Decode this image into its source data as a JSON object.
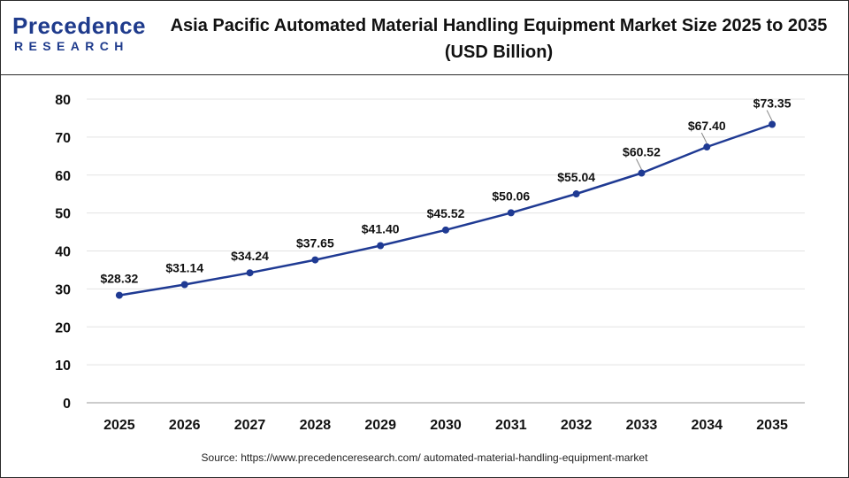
{
  "header": {
    "logo_main": "Precedence",
    "logo_sub": "RESEARCH",
    "title_line1": "Asia Pacific Automated Material Handling Equipment Market Size 2025 to 2035",
    "title_line2": "(USD Billion)"
  },
  "source": "Source: https://www.precedenceresearch.com/ automated-material-handling-equipment-market",
  "colors": {
    "line": "#1f3a93",
    "point": "#1f3a93",
    "grid": "#e3e3e3",
    "axis": "#9a9a9a",
    "brand": "#1f3b8c"
  },
  "chart_data": {
    "type": "line",
    "title": "Asia Pacific Automated Material Handling Equipment Market Size 2025 to 2035 (USD Billion)",
    "categories": [
      "2025",
      "2026",
      "2027",
      "2028",
      "2029",
      "2030",
      "2031",
      "2032",
      "2033",
      "2034",
      "2035"
    ],
    "series": [
      {
        "values": [
          28.32,
          31.14,
          34.24,
          37.65,
          41.4,
          45.52,
          50.06,
          55.04,
          60.52,
          67.4,
          73.35
        ],
        "labels": [
          "$28.32",
          "$31.14",
          "$34.24",
          "$37.65",
          "$41.40",
          "$45.52",
          "$50.06",
          "$55.04",
          "$60.52",
          "$67.40",
          "$73.35"
        ]
      }
    ],
    "ylim": [
      0,
      80
    ],
    "yticks": [
      0,
      10,
      20,
      30,
      40,
      50,
      60,
      70,
      80
    ],
    "xlabel": "",
    "ylabel": "",
    "grid": true,
    "legend": "none"
  }
}
